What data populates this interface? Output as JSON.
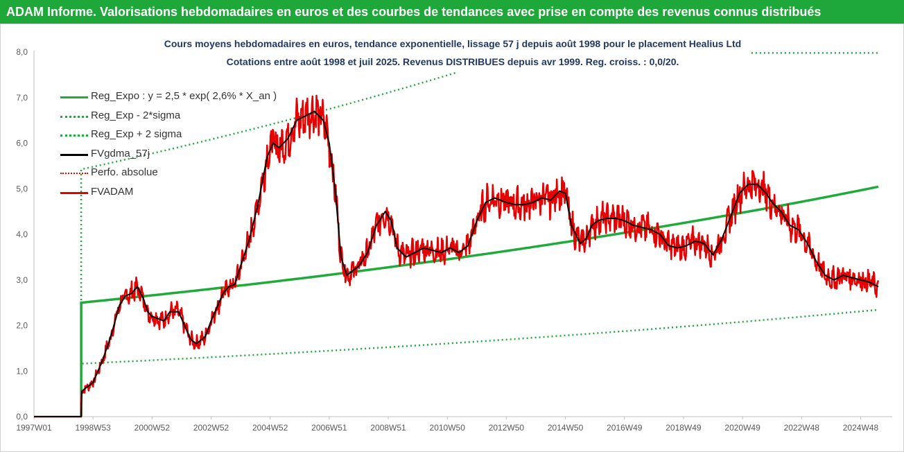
{
  "banner": {
    "title": "ADAM Informe. Valorisations hebdomadaires en euros et des courbes de tendances avec prise en compte des revenus connus distribués"
  },
  "colors": {
    "banner_bg": "#1fa83a",
    "trend": "#1fab3b",
    "smooth": "#000000",
    "price": "#e60000",
    "subtitle": "#1f3864"
  },
  "chart_data": {
    "type": "line",
    "title_line1": "Cours moyens hebdomadaires en euros, tendance exponentielle, lissage 57 j depuis août 1998 pour le placement  Healius Ltd",
    "title_line2": "Cotations entre août 1998 et juil 2025. Revenus DISTRIBUES depuis avr 1999. Reg. croiss. : 0,0/20.",
    "x_tick_labels": [
      "1997W01",
      "1998W53",
      "2000W52",
      "2002W52",
      "2004W52",
      "2006W51",
      "2008W51",
      "2010W50",
      "2012W50",
      "2014W50",
      "2016W49",
      "2018W49",
      "2020W49",
      "2022W48",
      "2024W48"
    ],
    "x_tick_years": [
      1997.0,
      1999.0,
      2001.0,
      2003.0,
      2005.0,
      2007.0,
      2009.0,
      2011.0,
      2013.0,
      2015.0,
      2017.0,
      2019.0,
      2021.0,
      2023.0,
      2025.0
    ],
    "xlim": [
      1997.0,
      2025.6
    ],
    "y_tick_labels": [
      "0,0",
      "1,0",
      "2,0",
      "3,0",
      "4,0",
      "5,0",
      "6,0",
      "7,0",
      "8,0"
    ],
    "ylim": [
      0,
      8
    ],
    "grid": false,
    "legend_position": "top-left",
    "regression": {
      "start_year": 1998.6,
      "base": 2.5,
      "rate": 0.026,
      "minus_2sigma_factor": 0.465,
      "plus_2sigma_factor": 2.17
    },
    "series": [
      {
        "name": "Reg_Expo : y = 2,5 * exp( 2,6% *  X_an )",
        "style": "solid-green"
      },
      {
        "name": "Reg_Exp - 2*sigma",
        "style": "dotted-green"
      },
      {
        "name": "Reg_Exp + 2 sigma",
        "style": "dotted-green"
      },
      {
        "name": "FVgdma_57j",
        "style": "solid-black",
        "x": [
          1997.0,
          1998.6,
          1998.62,
          1998.7,
          1999.0,
          1999.3,
          1999.6,
          1999.9,
          2000.1,
          2000.3,
          2000.5,
          2000.7,
          2000.85,
          2001.0,
          2001.2,
          2001.4,
          2001.6,
          2001.9,
          2002.1,
          2002.3,
          2002.5,
          2002.8,
          2003.0,
          2003.2,
          2003.4,
          2003.6,
          2003.8,
          2004.0,
          2004.3,
          2004.6,
          2004.9,
          2005.1,
          2005.3,
          2005.6,
          2005.9,
          2006.2,
          2006.5,
          2006.8,
          2007.0,
          2007.2,
          2007.4,
          2007.6,
          2007.8,
          2008.0,
          2008.3,
          2008.6,
          2008.9,
          2009.1,
          2009.3,
          2009.6,
          2009.9,
          2010.2,
          2010.5,
          2010.8,
          2011.1,
          2011.4,
          2011.7,
          2012.0,
          2012.3,
          2012.6,
          2012.8,
          2013.0,
          2013.3,
          2013.6,
          2013.9,
          2014.2,
          2014.5,
          2014.8,
          2015.0,
          2015.2,
          2015.5,
          2015.7,
          2015.9,
          2016.1,
          2016.4,
          2016.7,
          2017.0,
          2017.3,
          2017.6,
          2017.9,
          2018.2,
          2018.5,
          2018.8,
          2019.1,
          2019.4,
          2019.7,
          2020.0,
          2020.3,
          2020.6,
          2020.9,
          2021.2,
          2021.5,
          2021.8,
          2022.0,
          2022.3,
          2022.6,
          2022.9,
          2023.2,
          2023.5,
          2023.8,
          2024.1,
          2024.4,
          2024.7,
          2025.0,
          2025.3,
          2025.6
        ],
        "y": [
          0.0,
          0.0,
          0.55,
          0.6,
          0.75,
          1.2,
          1.75,
          2.45,
          2.65,
          2.7,
          2.85,
          2.6,
          2.3,
          2.2,
          2.15,
          2.1,
          2.3,
          2.3,
          2.0,
          1.7,
          1.6,
          1.75,
          2.1,
          2.4,
          2.7,
          2.85,
          2.9,
          3.3,
          3.9,
          4.7,
          5.7,
          6.0,
          5.9,
          6.1,
          6.5,
          6.6,
          6.7,
          6.5,
          6.0,
          5.0,
          3.5,
          3.1,
          3.2,
          3.3,
          3.6,
          4.2,
          4.5,
          4.3,
          3.7,
          3.5,
          3.6,
          3.7,
          3.65,
          3.6,
          3.7,
          3.6,
          3.75,
          4.3,
          4.7,
          4.8,
          4.75,
          4.7,
          4.65,
          4.65,
          4.7,
          4.8,
          4.75,
          4.95,
          4.9,
          4.2,
          3.8,
          3.9,
          4.2,
          4.3,
          4.35,
          4.35,
          4.3,
          4.2,
          4.15,
          4.1,
          4.0,
          3.75,
          3.7,
          3.75,
          3.85,
          3.8,
          3.55,
          3.9,
          4.4,
          4.9,
          5.1,
          5.1,
          4.9,
          4.7,
          4.5,
          4.2,
          4.1,
          3.8,
          3.4,
          3.1,
          3.0,
          3.1,
          3.05,
          3.0,
          2.95,
          2.85
        ]
      },
      {
        "name": "Perfo. absolue",
        "style": "dotted-red"
      },
      {
        "name": "FVADAM",
        "style": "solid-red"
      }
    ]
  }
}
